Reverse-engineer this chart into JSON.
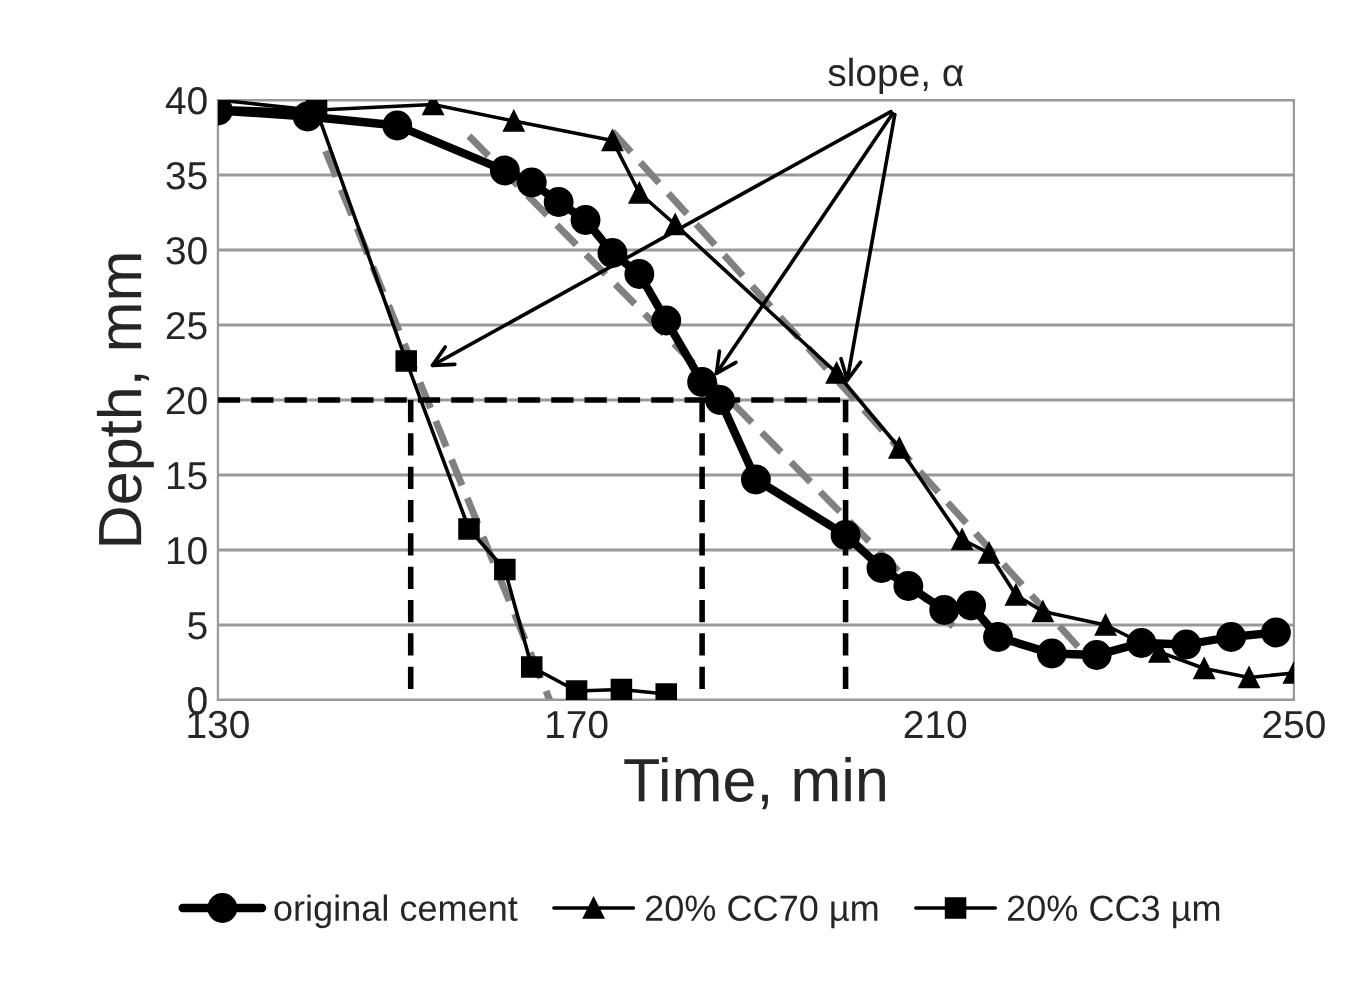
{
  "chart_data": {
    "type": "line",
    "xlabel": "Time, min",
    "ylabel": "Depth, mm",
    "xlim": [
      130,
      250
    ],
    "xticks": [
      130,
      170,
      210,
      250
    ],
    "ylim": [
      0,
      40
    ],
    "yticks": [
      0,
      5,
      10,
      15,
      20,
      25,
      30,
      35,
      40
    ],
    "grid": "y",
    "legend": "bottom",
    "annotations": [
      {
        "text": "slope, α",
        "x": 153,
        "y": 22
      }
    ],
    "series": [
      {
        "name": "original cement",
        "color": "#000000",
        "marker": "circle",
        "line_style": "solid",
        "x": [
          130,
          140,
          150,
          162,
          165,
          168,
          171,
          174,
          177,
          180,
          184,
          186,
          190,
          200,
          204,
          207,
          211,
          214,
          217,
          223,
          228,
          233,
          238,
          243,
          248
        ],
        "values": [
          39.3,
          38.9,
          38.3,
          35.3,
          34.5,
          33.2,
          32.0,
          29.8,
          28.4,
          25.3,
          21.2,
          20.0,
          14.7,
          11.0,
          8.8,
          7.6,
          6.0,
          6.3,
          4.2,
          3.1,
          3.0,
          3.8,
          3.7,
          4.2,
          4.5
        ]
      },
      {
        "name": "20% CC70 µm",
        "color": "#000000",
        "marker": "triangle",
        "line_style": "solid",
        "x": [
          130,
          140,
          154,
          163,
          174,
          177,
          181,
          199,
          206,
          213,
          216,
          219,
          222,
          229,
          235,
          240,
          245,
          250
        ],
        "values": [
          39.5,
          39.3,
          39.7,
          38.6,
          37.3,
          33.8,
          31.7,
          21.8,
          16.8,
          10.7,
          9.8,
          7.0,
          5.9,
          5.0,
          3.2,
          2.1,
          1.5,
          1.8
        ]
      },
      {
        "name": "20% CC3 µm",
        "color": "#000000",
        "marker": "square",
        "line_style": "solid",
        "x": [
          130,
          141,
          151,
          158,
          162,
          165,
          170,
          175,
          180
        ],
        "values": [
          40,
          39.3,
          22.6,
          11.4,
          8.7,
          2.2,
          0.6,
          0.7,
          0.4
        ]
      },
      {
        "type": "line",
        "color": "#808080",
        "line_style": "dashed",
        "x": [
          142,
          167
        ],
        "values": [
          36.6,
          0
        ]
      },
      {
        "type": "line",
        "color": "#808080",
        "line_style": "dashed",
        "x": [
          158,
          212
        ],
        "values": [
          37.6,
          4.9
        ]
      },
      {
        "type": "line",
        "color": "#808080",
        "line_style": "dashed",
        "x": [
          174,
          226
        ],
        "values": [
          37.9,
          3.5
        ]
      },
      {
        "type": "line",
        "color": "#000000",
        "line_style": "dashed",
        "x": [
          130,
          200
        ],
        "values": [
          20,
          20
        ]
      },
      {
        "type": "line",
        "color": "#000000",
        "line_style": "dashed",
        "x": [
          151.5,
          151.5
        ],
        "values": [
          20,
          0
        ]
      },
      {
        "type": "line",
        "color": "#000000",
        "line_style": "dashed",
        "x": [
          184,
          184
        ],
        "values": [
          20,
          0
        ]
      },
      {
        "type": "line",
        "color": "#000000",
        "line_style": "dashed",
        "x": [
          200,
          200
        ],
        "values": [
          20,
          0
        ]
      }
    ]
  }
}
